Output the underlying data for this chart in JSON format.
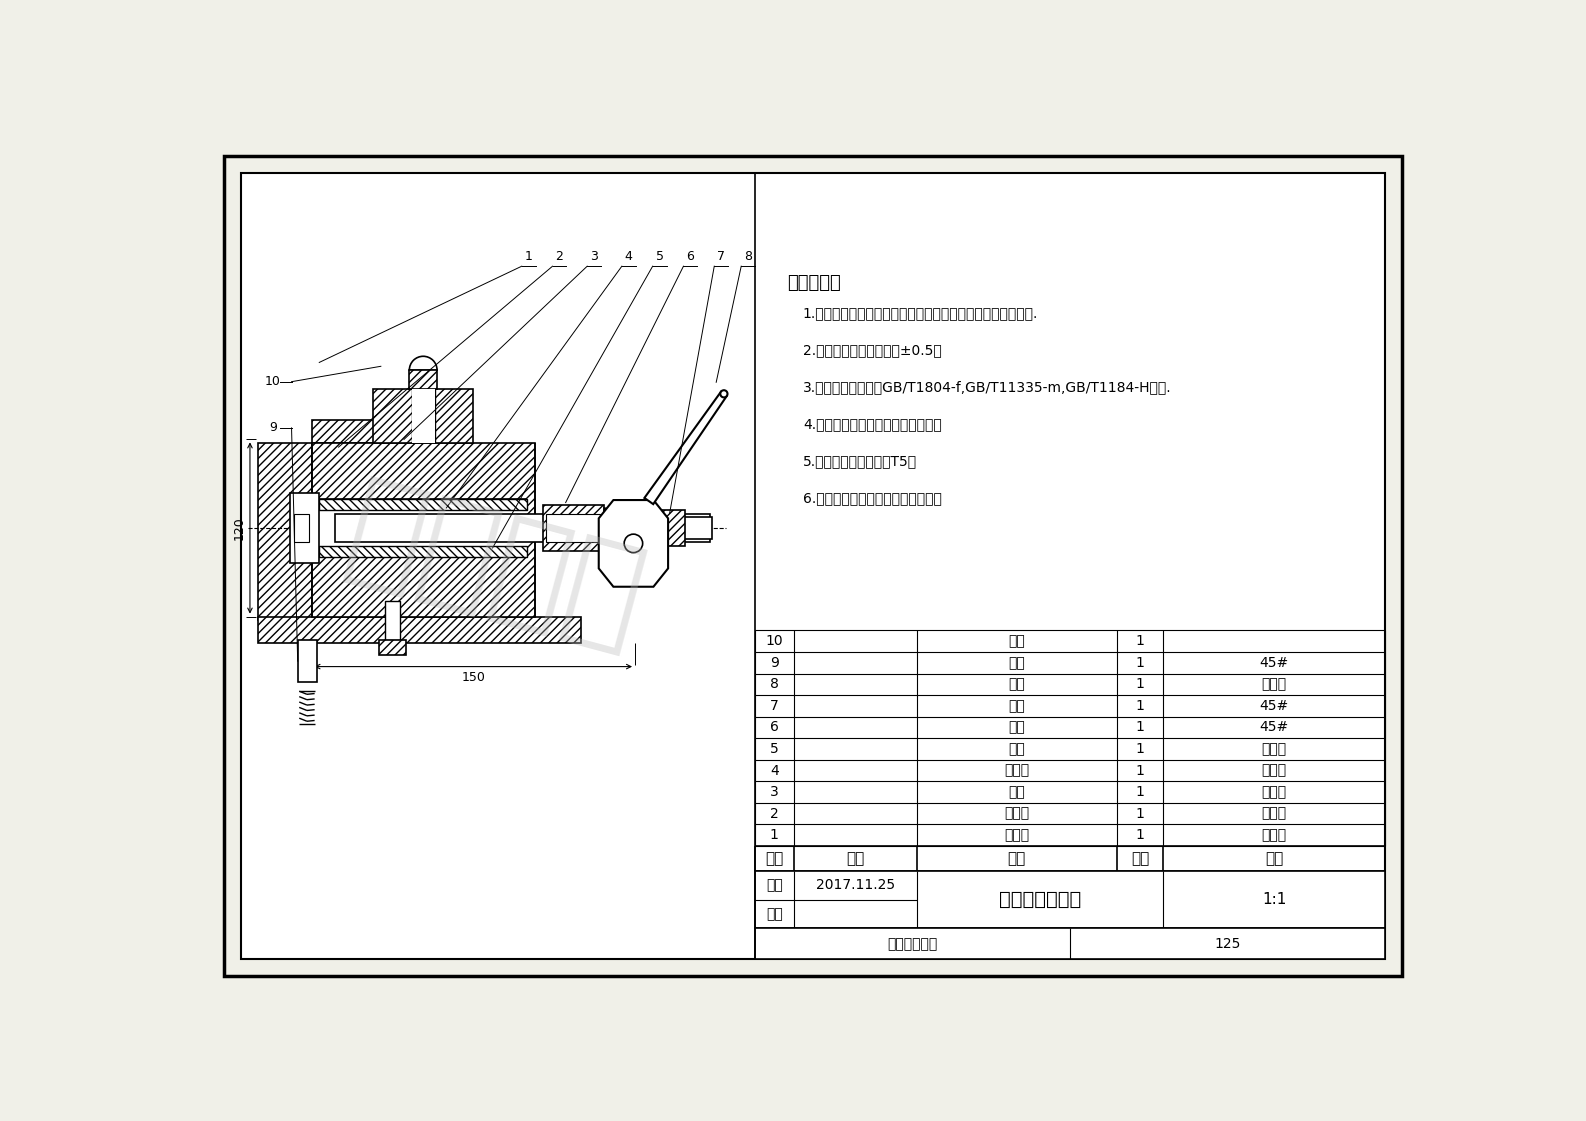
{
  "bg_color": "#f0f0e8",
  "drawing_bg": "#ffffff",
  "line_color": "#000000",
  "hatch_color": "#000000",
  "tech_requirements_title": "技术要求：",
  "tech_requirements": [
    "1.零件不能有变形、裂纹等缺陷，零件表面不能有划痕、擦伤.",
    "2.零件未注尺寸允许偏差±0.5。",
    "3.零件未注公差按照GB/T1804-f,GB/T11335-m,GB/T1184-H执行.",
    "4.零件锐角倒钝；去除毛刺、飞边。",
    "5.铝合金零件热处理：T5。",
    "6.装配松紧适度，不能有卡死现象。"
  ],
  "parts_rows": [
    [
      "10",
      "",
      "弹簧",
      "1",
      ""
    ],
    [
      "9",
      "",
      "螺塞",
      "1",
      "45#"
    ],
    [
      "8",
      "",
      "扳手",
      "1",
      "铝合金"
    ],
    [
      "7",
      "",
      "螺套",
      "1",
      "45#"
    ],
    [
      "6",
      "",
      "螺柱",
      "1",
      "45#"
    ],
    [
      "5",
      "",
      "顶销",
      "1",
      "铝合金"
    ],
    [
      "4",
      "",
      "支承座",
      "1",
      "铝合金"
    ],
    [
      "3",
      "",
      "衬套",
      "1",
      "铝合金"
    ],
    [
      "2",
      "",
      "防尘盖",
      "1",
      "铝合金"
    ],
    [
      "1",
      "",
      "支承轴",
      "1",
      "铝合金"
    ]
  ],
  "headers": [
    "序号",
    "标准",
    "名称",
    "数量",
    "材料"
  ],
  "drawing_by": "制图",
  "date": "2017.11.25",
  "checked_by": "校核",
  "company": "重庆夹研科技",
  "drawing_name": "自引式辅助支承",
  "scale": "1:1",
  "drawing_number": "125",
  "dim_120": "120",
  "dim_150": "150",
  "label_numbers": [
    "1",
    "2",
    "3",
    "4",
    "5",
    "6",
    "7",
    "8"
  ],
  "left_labels": [
    "10",
    "9"
  ],
  "watermark": "夹研科技"
}
